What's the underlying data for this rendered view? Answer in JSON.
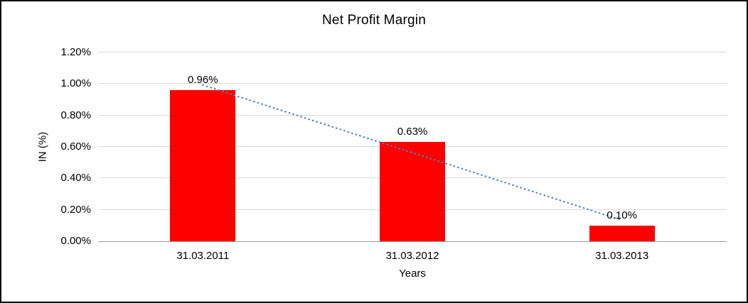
{
  "chart_data": {
    "type": "bar",
    "title": "Net Profit Margin",
    "xlabel": "Years",
    "ylabel": "IN (%)",
    "categories": [
      "31.03.2011",
      "31.03.2012",
      "31.03.2013"
    ],
    "values": [
      0.96,
      0.63,
      0.1
    ],
    "value_labels": [
      "0.96%",
      "0.63%",
      "0.10%"
    ],
    "ylim": [
      0,
      1.2
    ],
    "y_tick_values": [
      0,
      0.2,
      0.4,
      0.6,
      0.8,
      1.0,
      1.2
    ],
    "y_tick_labels": [
      "0.00%",
      "0.20%",
      "0.40%",
      "0.60%",
      "0.80%",
      "1.00%",
      "1.20%"
    ],
    "grid": true,
    "legend": "none",
    "bar_color": "#ff0000",
    "background_color": "#ffffff",
    "trendline": {
      "type": "linear",
      "style": "dotted",
      "color": "#4f81bd"
    }
  }
}
